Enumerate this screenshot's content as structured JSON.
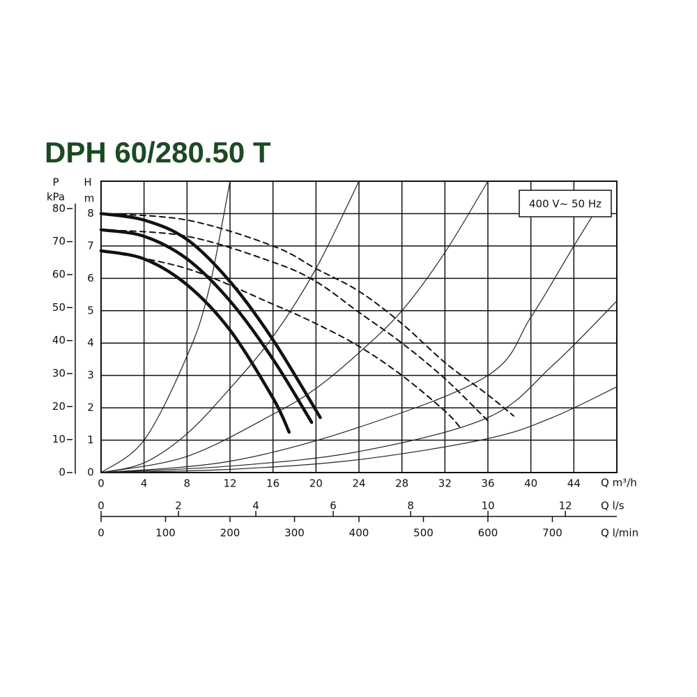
{
  "chart_data": {
    "type": "line",
    "title": "DPH 60/280.50 T",
    "annotation": "400 V~ 50 Hz",
    "x_label": "Q m³/h",
    "x2_label": "Q l/s",
    "x3_label": "Q l/min",
    "y_label": "H",
    "y_unit": "m",
    "y2_label": "P",
    "y2_unit": "kPa",
    "xlim": [
      0,
      48
    ],
    "xticks": [
      0,
      4,
      8,
      12,
      16,
      20,
      24,
      28,
      32,
      36,
      40,
      44
    ],
    "x2lim": [
      0,
      13.33
    ],
    "x2ticks": [
      0,
      2,
      4,
      6,
      8,
      10,
      12
    ],
    "x3lim": [
      0,
      800
    ],
    "x3ticks": [
      0,
      100,
      200,
      300,
      400,
      500,
      600,
      700
    ],
    "ylim": [
      0,
      9
    ],
    "yticks": [
      0,
      1,
      2,
      3,
      4,
      5,
      6,
      7,
      8
    ],
    "y2lim": [
      0,
      88.3
    ],
    "y2ticks": [
      0,
      10,
      20,
      30,
      40,
      50,
      60,
      70,
      80
    ],
    "grid": true,
    "series": [
      {
        "color": "#111",
        "line_style": "thick",
        "x": [
          0,
          4,
          8,
          12,
          16,
          20.4
        ],
        "values": [
          8.0,
          7.8,
          7.2,
          5.9,
          4.1,
          1.7
        ]
      },
      {
        "color": "#111",
        "line_style": "thick",
        "x": [
          0,
          4,
          8,
          12,
          16,
          19.6
        ],
        "values": [
          7.5,
          7.3,
          6.6,
          5.3,
          3.5,
          1.55
        ]
      },
      {
        "color": "#111",
        "line_style": "thick",
        "x": [
          0,
          4,
          8,
          12,
          16,
          17.5
        ],
        "values": [
          6.85,
          6.6,
          5.8,
          4.4,
          2.3,
          1.25
        ]
      },
      {
        "color": "#111",
        "line_style": "dashed",
        "x": [
          0,
          8,
          16,
          20,
          24,
          28,
          32,
          36,
          38.4
        ],
        "values": [
          8.0,
          7.8,
          7.0,
          6.3,
          5.6,
          4.6,
          3.4,
          2.4,
          1.75
        ]
      },
      {
        "color": "#111",
        "line_style": "dashed",
        "x": [
          0,
          8,
          16,
          20,
          24,
          28,
          32,
          36
        ],
        "values": [
          7.5,
          7.3,
          6.5,
          5.9,
          4.95,
          4.0,
          2.9,
          1.6
        ]
      },
      {
        "color": "#111",
        "line_style": "dashed",
        "x": [
          0,
          8,
          16,
          20,
          24,
          28,
          32,
          33.4
        ],
        "values": [
          6.85,
          6.3,
          5.2,
          4.6,
          3.9,
          3.0,
          1.9,
          1.4
        ]
      },
      {
        "color": "#222",
        "line_style": "thin",
        "x": [
          0,
          4,
          8,
          10,
          12
        ],
        "values": [
          0,
          1.0,
          3.6,
          5.6,
          9
        ]
      },
      {
        "color": "#222",
        "line_style": "thin",
        "x": [
          0,
          4,
          8,
          12,
          16,
          20,
          24
        ],
        "values": [
          0,
          0.3,
          1.2,
          2.6,
          4.2,
          6.3,
          9
        ]
      },
      {
        "color": "#222",
        "line_style": "thin",
        "x": [
          0,
          8,
          16,
          20,
          24,
          28,
          32,
          36
        ],
        "values": [
          0,
          0.5,
          1.8,
          2.6,
          3.7,
          5.0,
          6.8,
          9
        ]
      },
      {
        "color": "#222",
        "line_style": "thin",
        "x": [
          0,
          12,
          24,
          36,
          40,
          44,
          47
        ],
        "values": [
          0,
          0.35,
          1.4,
          3.0,
          4.8,
          7.0,
          8.6
        ]
      },
      {
        "color": "#222",
        "line_style": "thin",
        "x": [
          0,
          12,
          24,
          36,
          42,
          48
        ],
        "values": [
          0,
          0.2,
          0.65,
          1.7,
          3.3,
          5.3
        ]
      },
      {
        "color": "#222",
        "line_style": "thin",
        "x": [
          0,
          12,
          24,
          36,
          42,
          48
        ],
        "values": [
          0,
          0.1,
          0.4,
          1.05,
          1.7,
          2.65
        ]
      }
    ]
  }
}
